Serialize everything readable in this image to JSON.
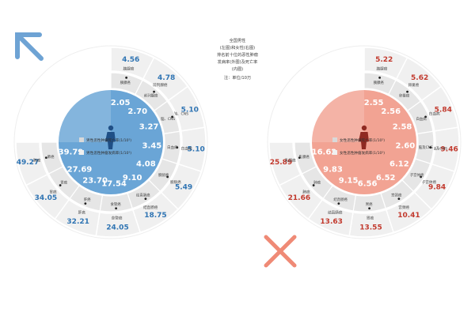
{
  "center_note": {
    "lines": [
      "全国男性",
      "(左图)和女性(右图)",
      "排名前十位的恶性肿瘤",
      "发病率(外圈)及死亡率",
      "(内圈)"
    ],
    "unit": "注：单位/10万"
  },
  "colors": {
    "male_fill": "#6aa5d6",
    "male_text": "#2f74b3",
    "female_fill": "#f2a393",
    "female_text": "#c23a2e",
    "ring_gray": "#e6e6e6",
    "ring_stroke": "#ffffff",
    "arrow_blue": "#6ea3d4",
    "arrow_gray": "#e9e9e9",
    "cross_red": "#ef8a76"
  },
  "chart_data": [
    {
      "type": "radial",
      "subject": "male",
      "legend": [
        {
          "label": "男性恶性肿瘤死亡率(1/10⁵)"
        },
        {
          "label": "男性恶性肿瘤发病率(1/10⁵)"
        }
      ],
      "segments": [
        {
          "label": "胰腺癌",
          "incidence": 4.56,
          "mortality": 2.05
        },
        {
          "label": "前列腺癌",
          "incidence": 4.78,
          "mortality": 2.7
        },
        {
          "label": "脑、CNS",
          "incidence": 5.1,
          "mortality": 3.27
        },
        {
          "label": "白血病",
          "incidence": 5.1,
          "mortality": 3.45
        },
        {
          "label": "膀胱癌",
          "incidence": 5.49,
          "mortality": 4.08
        },
        {
          "label": "结直肠癌",
          "incidence": 18.75,
          "mortality": 9.1
        },
        {
          "label": "食管癌",
          "incidence": 24.05,
          "mortality": 17.54
        },
        {
          "label": "肝癌",
          "incidence": 32.21,
          "mortality": 23.7
        },
        {
          "label": "胃癌",
          "incidence": 34.05,
          "mortality": 27.69
        },
        {
          "label": "肺癌",
          "incidence": 49.27,
          "mortality": 39.79
        }
      ]
    },
    {
      "type": "radial",
      "subject": "female",
      "legend": [
        {
          "label": "女性恶性肿瘤死亡率(1/10⁵)"
        },
        {
          "label": "女性恶性肿瘤发病率(1/10⁵)"
        }
      ],
      "segments": [
        {
          "label": "胰腺癌",
          "incidence": 5.22,
          "mortality": 2.55
        },
        {
          "label": "卵巢癌",
          "incidence": 5.62,
          "mortality": 2.56
        },
        {
          "label": "白血病",
          "incidence": 5.84,
          "mortality": 2.58
        },
        {
          "label": "脑及CNS",
          "incidence": 9.46,
          "mortality": 2.6
        },
        {
          "label": "子宫体癌",
          "incidence": 9.84,
          "mortality": 6.12
        },
        {
          "label": "宫颈癌",
          "incidence": 10.41,
          "mortality": 6.52
        },
        {
          "label": "胃癌",
          "incidence": 13.55,
          "mortality": 6.56
        },
        {
          "label": "结直肠癌",
          "incidence": 13.63,
          "mortality": 9.15
        },
        {
          "label": "肺癌",
          "incidence": 21.66,
          "mortality": 9.83
        },
        {
          "label": "乳腺癌",
          "incidence": 25.89,
          "mortality": 16.62
        }
      ]
    }
  ]
}
